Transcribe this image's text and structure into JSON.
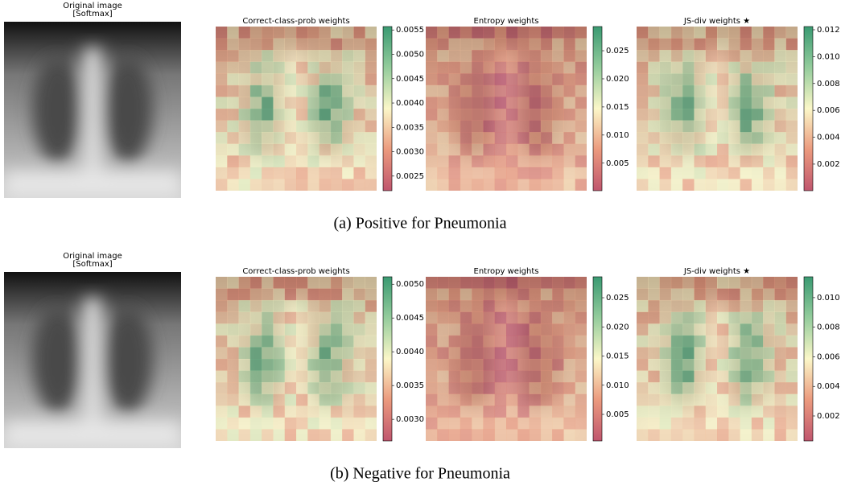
{
  "rows": [
    {
      "original": {
        "title": "Original image",
        "subtitle": "[Softmax]"
      },
      "maps": [
        {
          "title": "Correct-class-prob weights",
          "colorbar": {
            "lim": [
              0.0022,
              0.00557
            ],
            "ticks": [
              {
                "value": 0.0025,
                "label": "0.0025"
              },
              {
                "value": 0.003,
                "label": "0.0030"
              },
              {
                "value": 0.0035,
                "label": "0.0035"
              },
              {
                "value": 0.004,
                "label": "0.0040"
              },
              {
                "value": 0.0045,
                "label": "0.0045"
              },
              {
                "value": 0.005,
                "label": "0.0050"
              },
              {
                "value": 0.0055,
                "label": "0.0055"
              }
            ]
          }
        },
        {
          "title": "Entropy weights",
          "colorbar": {
            "lim": [
              0.0001,
              0.0293
            ],
            "ticks": [
              {
                "value": 0.005,
                "label": "0.005"
              },
              {
                "value": 0.01,
                "label": "0.010"
              },
              {
                "value": 0.015,
                "label": "0.015"
              },
              {
                "value": 0.02,
                "label": "0.020"
              },
              {
                "value": 0.025,
                "label": "0.025"
              }
            ]
          }
        },
        {
          "title": "JS-div weights  ★",
          "colorbar": {
            "lim": [
              2e-05,
              0.01224
            ],
            "ticks": [
              {
                "value": 0.002,
                "label": "0.002"
              },
              {
                "value": 0.004,
                "label": "0.004"
              },
              {
                "value": 0.006,
                "label": "0.006"
              },
              {
                "value": 0.008,
                "label": "0.008"
              },
              {
                "value": 0.01,
                "label": "0.010"
              },
              {
                "value": 0.012,
                "label": "0.012"
              }
            ]
          }
        }
      ],
      "caption": "(a) Positive for Pneumonia"
    },
    {
      "original": {
        "title": "Original image",
        "subtitle": "[Softmax]"
      },
      "maps": [
        {
          "title": "Correct-class-prob weights",
          "colorbar": {
            "lim": [
              0.00268,
              0.00511
            ],
            "ticks": [
              {
                "value": 0.003,
                "label": "0.0030"
              },
              {
                "value": 0.0035,
                "label": "0.0035"
              },
              {
                "value": 0.004,
                "label": "0.0040"
              },
              {
                "value": 0.0045,
                "label": "0.0045"
              },
              {
                "value": 0.005,
                "label": "0.0050"
              }
            ]
          }
        },
        {
          "title": "Entropy weights",
          "colorbar": {
            "lim": [
              0.00045,
              0.02859
            ],
            "ticks": [
              {
                "value": 0.005,
                "label": "0.005"
              },
              {
                "value": 0.01,
                "label": "0.010"
              },
              {
                "value": 0.015,
                "label": "0.015"
              },
              {
                "value": 0.02,
                "label": "0.020"
              },
              {
                "value": 0.025,
                "label": "0.025"
              }
            ]
          }
        },
        {
          "title": "JS-div weights  ★",
          "colorbar": {
            "lim": [
              0.000313,
              0.01141
            ],
            "ticks": [
              {
                "value": 0.002,
                "label": "0.002"
              },
              {
                "value": 0.004,
                "label": "0.004"
              },
              {
                "value": 0.006,
                "label": "0.006"
              },
              {
                "value": 0.008,
                "label": "0.008"
              },
              {
                "value": 0.01,
                "label": "0.010"
              }
            ]
          }
        }
      ],
      "caption": "(b) Negative for Pneumonia"
    }
  ]
}
